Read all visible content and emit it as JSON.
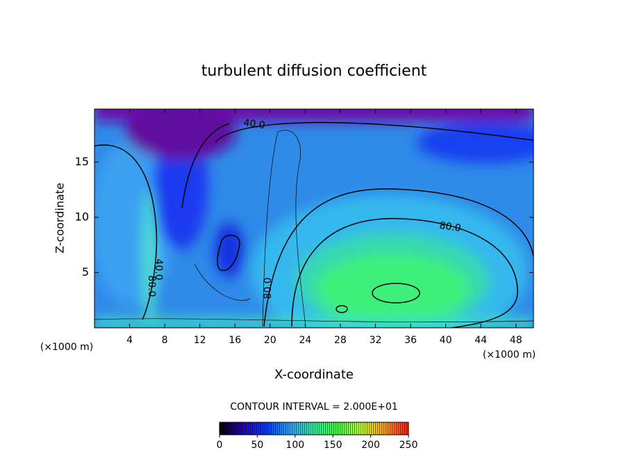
{
  "chart_data": {
    "type": "contour",
    "title": "turbulent diffusion coefficient",
    "x_label": "X-coordinate",
    "y_label": "Z-coordinate",
    "x_unit_labels": [
      "(×1000 m)",
      "(×1000 m)"
    ],
    "xlim": [
      0,
      50
    ],
    "xticks": [
      4,
      8,
      12,
      16,
      20,
      24,
      28,
      32,
      36,
      40,
      44,
      48
    ],
    "ylim": [
      0,
      19.8
    ],
    "yticks": [
      5,
      10,
      15
    ],
    "contour_labels": [
      "40.0",
      "80.0",
      "40.0",
      "80.0",
      "80.0"
    ],
    "contour_interval_label": "CONTOUR INTERVAL = 2.000E+01",
    "colorbar": {
      "lim": [
        0,
        250
      ],
      "ticks": [
        0,
        50,
        100,
        150,
        200,
        250
      ]
    }
  }
}
